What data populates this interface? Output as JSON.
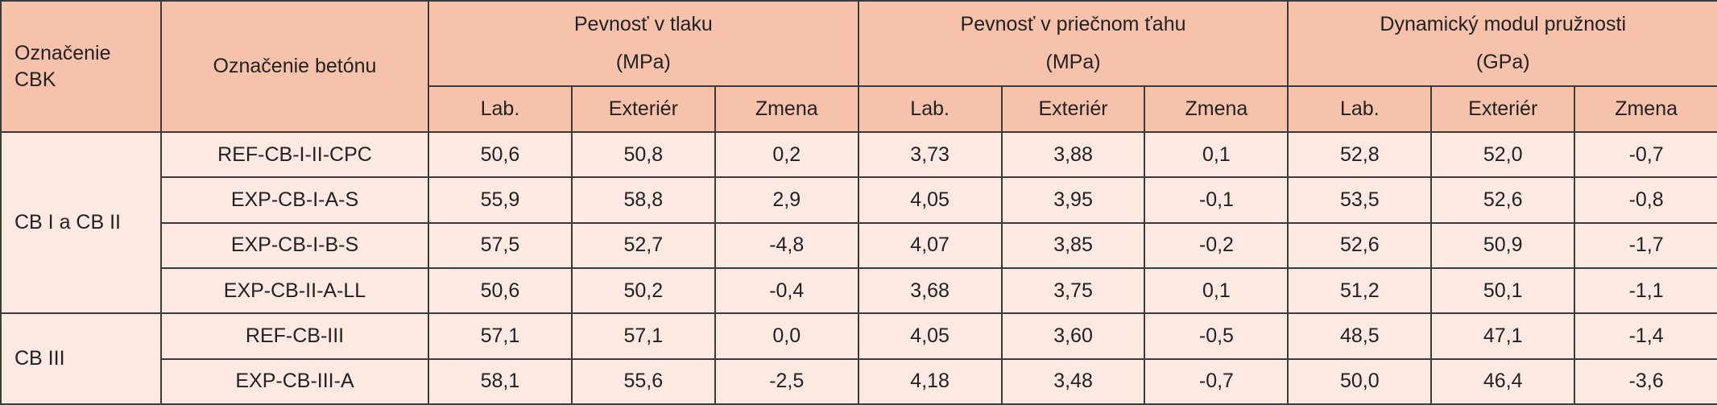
{
  "table": {
    "header": {
      "col1": "Označenie CBK",
      "col2": "Označenie betónu",
      "groups": [
        {
          "title": "Pevnosť v tlaku",
          "unit": "(MPa)",
          "columns": [
            "Lab.",
            "Exteriér",
            "Zmena"
          ]
        },
        {
          "title": "Pevnosť v priečnom ťahu",
          "unit": "(MPa)",
          "columns": [
            "Lab.",
            "Exteriér",
            "Zmena"
          ]
        },
        {
          "title": "Dynamický modul pružnosti",
          "unit": "(GPa)",
          "columns": [
            "Lab.",
            "Exteriér",
            "Zmena"
          ]
        }
      ]
    },
    "groups": [
      {
        "label": "CB I a CB II",
        "rows": [
          {
            "name": "REF-CB-I-II-CPC",
            "values": [
              "50,6",
              "50,8",
              "0,2",
              "3,73",
              "3,88",
              "0,1",
              "52,8",
              "52,0",
              "-0,7"
            ]
          },
          {
            "name": "EXP-CB-I-A-S",
            "values": [
              "55,9",
              "58,8",
              "2,9",
              "4,05",
              "3,95",
              "-0,1",
              "53,5",
              "52,6",
              "-0,8"
            ]
          },
          {
            "name": "EXP-CB-I-B-S",
            "values": [
              "57,5",
              "52,7",
              "-4,8",
              "4,07",
              "3,85",
              "-0,2",
              "52,6",
              "50,9",
              "-1,7"
            ]
          },
          {
            "name": "EXP-CB-II-A-LL",
            "values": [
              "50,6",
              "50,2",
              "-0,4",
              "3,68",
              "3,75",
              "0,1",
              "51,2",
              "50,1",
              "-1,1"
            ]
          }
        ]
      },
      {
        "label": "CB III",
        "rows": [
          {
            "name": "REF-CB-III",
            "values": [
              "57,1",
              "57,1",
              "0,0",
              "4,05",
              "3,60",
              "-0,5",
              "48,5",
              "47,1",
              "-1,4"
            ]
          },
          {
            "name": "EXP-CB-III-A",
            "values": [
              "58,1",
              "55,6",
              "-2,5",
              "4,18",
              "3,48",
              "-0,7",
              "50,0",
              "46,4",
              "-3,6"
            ]
          }
        ]
      }
    ]
  }
}
